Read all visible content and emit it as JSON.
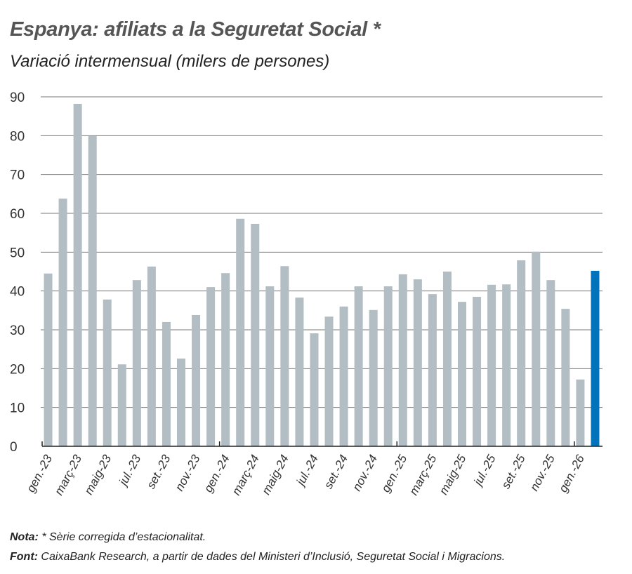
{
  "chart_data": {
    "type": "bar",
    "title": "Espanya: afiliats a la Seguretat Social *",
    "subtitle": "Variació intermensual (milers de persones)",
    "xlabel": "",
    "ylabel": "",
    "ylim": [
      0,
      90
    ],
    "yticks": [
      0,
      10,
      20,
      30,
      40,
      50,
      60,
      70,
      80,
      90
    ],
    "grid": true,
    "categories": [
      "gen.-23",
      "",
      "març-23",
      "",
      "maig-23",
      "",
      "jul.-23",
      "",
      "set.-23",
      "",
      "nov.-23",
      "",
      "gen.-24",
      "",
      "març-24",
      "",
      "maig-24",
      "",
      "jul.-24",
      "",
      "set.-24",
      "",
      "nov.-24",
      "",
      "gen.-25",
      "",
      "març-25",
      "",
      "maig-25",
      "",
      "jul.-25",
      "",
      "set.-25",
      "",
      "nov.-25",
      "",
      "gen.-26",
      ""
    ],
    "values": [
      44.5,
      63.8,
      88.2,
      79.9,
      37.8,
      21.1,
      42.8,
      46.3,
      32.0,
      22.6,
      33.8,
      41.0,
      44.6,
      58.6,
      57.3,
      41.2,
      46.4,
      38.3,
      29.1,
      33.4,
      36.0,
      41.2,
      35.1,
      41.2,
      44.3,
      43.0,
      39.2,
      45.0,
      37.2,
      38.5,
      41.6,
      41.7,
      47.9,
      50.1,
      42.8,
      35.4,
      17.2,
      45.2
    ],
    "highlight_index": 37,
    "colors": {
      "bar": "#b2bec3",
      "highlight": "#0073bb",
      "grid": "#7a7a7a",
      "axis": "#222222"
    }
  },
  "notes": {
    "nota_label": "Nota:",
    "nota_text": " * Sèrie corregida d’estacionalitat.",
    "font_label": "Font:",
    "font_text": " CaixaBank Research, a partir de dades del Ministeri d’Inclusió, Seguretat Social i Migracions."
  }
}
